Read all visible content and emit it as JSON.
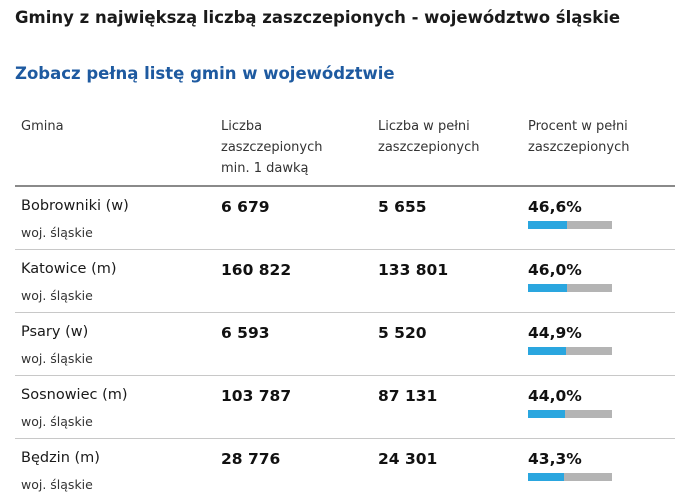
{
  "title": "Gminy z największą liczbą zaszczepionych - województwo śląskie",
  "link_label": "Zobacz pełną listę gmin w województwie",
  "colors": {
    "link": "#1e5aa0",
    "bar_fill": "#2aa6df",
    "bar_track": "#b4b4b4"
  },
  "headers": {
    "gmina": "Gmina",
    "dose1": [
      "Liczba",
      "zaszczepionych",
      "min. 1 dawką"
    ],
    "full": [
      "Liczba w pełni",
      "zaszczepionych"
    ],
    "percent": [
      "Procent w pełni",
      "zaszczepionych"
    ]
  },
  "rows": [
    {
      "gmina": "Bobrowniki (w)",
      "woj": "woj. śląskie",
      "dose1": "6 679",
      "full": "5 655",
      "percent": "46,6%",
      "percent_value": 46.6
    },
    {
      "gmina": "Katowice (m)",
      "woj": "woj. śląskie",
      "dose1": "160 822",
      "full": "133 801",
      "percent": "46,0%",
      "percent_value": 46.0
    },
    {
      "gmina": "Psary (w)",
      "woj": "woj. śląskie",
      "dose1": "6 593",
      "full": "5 520",
      "percent": "44,9%",
      "percent_value": 44.9
    },
    {
      "gmina": "Sosnowiec (m)",
      "woj": "woj. śląskie",
      "dose1": "103 787",
      "full": "87 131",
      "percent": "44,0%",
      "percent_value": 44.0
    },
    {
      "gmina": "Będzin (m)",
      "woj": "woj. śląskie",
      "dose1": "28 776",
      "full": "24 301",
      "percent": "43,3%",
      "percent_value": 43.3
    }
  ]
}
